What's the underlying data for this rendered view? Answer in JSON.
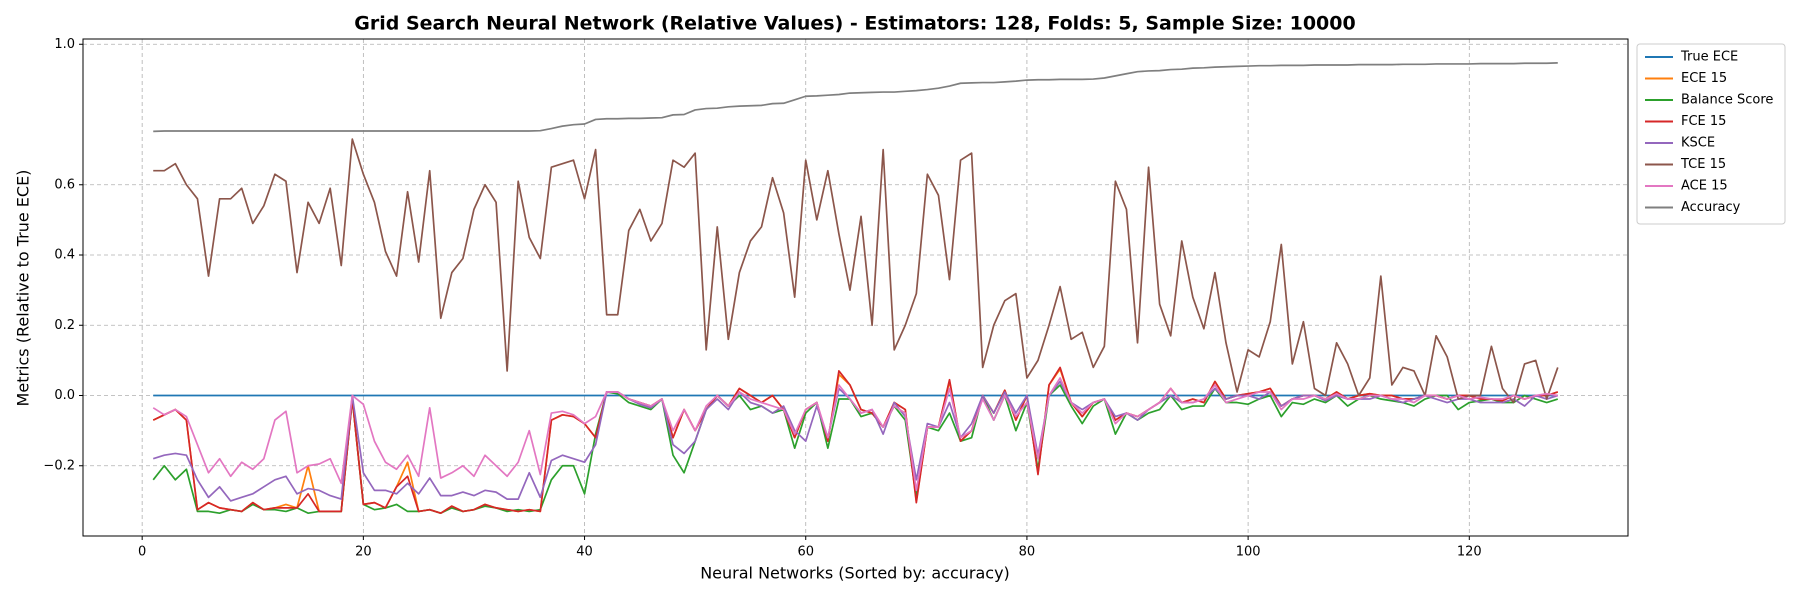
{
  "chart_data": {
    "type": "line",
    "title": "Grid Search Neural Network (Relative Values) - Estimators: 128, Folds: 5, Sample Size: 10000",
    "x_label": "Neural Networks (Sorted by: accuracy)",
    "y_label": "Metrics (Relative to True ECE)",
    "xlim": [
      -5.35,
      134.35
    ],
    "ylim": [
      -0.4,
      1.015
    ],
    "xticks": [
      0,
      20,
      40,
      60,
      80,
      100,
      120
    ],
    "yticks": [
      {
        "value": -0.2,
        "label": "−0.2"
      },
      {
        "value": 0,
        "label": "0.0"
      },
      0.2,
      0.4,
      0.6,
      {
        "value": 1,
        "label": "1.0"
      }
    ],
    "grid": true,
    "legend": "outside-upper-right",
    "x": [
      1,
      2,
      3,
      4,
      5,
      6,
      7,
      8,
      9,
      10,
      11,
      12,
      13,
      14,
      15,
      16,
      17,
      18,
      19,
      20,
      21,
      22,
      23,
      24,
      25,
      26,
      27,
      28,
      29,
      30,
      31,
      32,
      33,
      34,
      35,
      36,
      37,
      38,
      39,
      40,
      41,
      42,
      43,
      44,
      45,
      46,
      47,
      48,
      49,
      50,
      51,
      52,
      53,
      54,
      55,
      56,
      57,
      58,
      59,
      60,
      61,
      62,
      63,
      64,
      65,
      66,
      67,
      68,
      69,
      70,
      71,
      72,
      73,
      74,
      75,
      76,
      77,
      78,
      79,
      80,
      81,
      82,
      83,
      84,
      85,
      86,
      87,
      88,
      89,
      90,
      91,
      92,
      93,
      94,
      95,
      96,
      97,
      98,
      99,
      100,
      101,
      102,
      103,
      104,
      105,
      106,
      107,
      108,
      109,
      110,
      111,
      112,
      113,
      114,
      115,
      116,
      117,
      118,
      119,
      120,
      121,
      122,
      123,
      124,
      125,
      126,
      127,
      128
    ],
    "series": [
      {
        "name": "True ECE",
        "color": "#1f77b4",
        "values": [
          0,
          0,
          0,
          0,
          0,
          0,
          0,
          0,
          0,
          0,
          0,
          0,
          0,
          0,
          0,
          0,
          0,
          0,
          0,
          0,
          0,
          0,
          0,
          0,
          0,
          0,
          0,
          0,
          0,
          0,
          0,
          0,
          0,
          0,
          0,
          0,
          0,
          0,
          0,
          0,
          0,
          0,
          0,
          0,
          0,
          0,
          0,
          0,
          0,
          0,
          0,
          0,
          0,
          0,
          0,
          0,
          0,
          0,
          0,
          0,
          0,
          0,
          0,
          0,
          0,
          0,
          0,
          0,
          0,
          0,
          0,
          0,
          0,
          0,
          0,
          0,
          0,
          0,
          0,
          0,
          0,
          0,
          0,
          0,
          0,
          0,
          0,
          0,
          0,
          0,
          0,
          0,
          0,
          0,
          0,
          0,
          0,
          0,
          0,
          0,
          0,
          0,
          0,
          0,
          0,
          0,
          0,
          0,
          0,
          0,
          0,
          0,
          0,
          0,
          0,
          0,
          0,
          0,
          0,
          0,
          0,
          0,
          0,
          0,
          0,
          0,
          0,
          0
        ]
      },
      {
        "name": "ECE 15",
        "color": "#ff7f0e",
        "values": [
          -0.07,
          -0.055,
          -0.04,
          -0.07,
          -0.325,
          -0.305,
          -0.32,
          -0.325,
          -0.33,
          -0.305,
          -0.325,
          -0.32,
          -0.31,
          -0.32,
          -0.2,
          -0.33,
          -0.33,
          -0.33,
          -0.01,
          -0.31,
          -0.305,
          -0.32,
          -0.26,
          -0.19,
          -0.33,
          -0.325,
          -0.335,
          -0.315,
          -0.33,
          -0.325,
          -0.31,
          -0.32,
          -0.325,
          -0.33,
          -0.325,
          -0.33,
          -0.07,
          -0.055,
          -0.06,
          -0.08,
          -0.12,
          0.01,
          0.01,
          -0.01,
          -0.02,
          -0.03,
          -0.01,
          -0.12,
          -0.04,
          -0.1,
          -0.04,
          0,
          -0.03,
          0.02,
          0,
          -0.02,
          0,
          -0.04,
          -0.12,
          -0.04,
          -0.02,
          -0.13,
          0.06,
          0.03,
          -0.04,
          -0.05,
          -0.09,
          -0.02,
          -0.04,
          -0.3,
          -0.09,
          -0.09,
          0.04,
          -0.13,
          -0.1,
          0,
          -0.05,
          0.015,
          -0.07,
          0,
          -0.22,
          0.03,
          0.075,
          -0.02,
          -0.06,
          -0.02,
          -0.01,
          -0.07,
          -0.05,
          -0.06,
          -0.04,
          -0.02,
          0.02,
          -0.02,
          -0.01,
          -0.02,
          0.04,
          -0.01,
          0,
          0.005,
          0.01,
          0.02,
          -0.03,
          -0.01,
          0,
          0,
          -0.01,
          0.01,
          -0.01,
          0,
          0.005,
          0,
          0,
          -0.01,
          -0.01,
          0,
          0,
          -0.01,
          0,
          0,
          -0.01,
          -0.01,
          -0.015,
          0,
          -0.01,
          0,
          0,
          0.01
        ]
      },
      {
        "name": "Balance Score",
        "color": "#2ca02c",
        "values": [
          -0.24,
          -0.2,
          -0.24,
          -0.21,
          -0.33,
          -0.33,
          -0.335,
          -0.325,
          -0.33,
          -0.31,
          -0.325,
          -0.325,
          -0.33,
          -0.32,
          -0.335,
          -0.33,
          -0.33,
          -0.33,
          -0.01,
          -0.31,
          -0.325,
          -0.32,
          -0.31,
          -0.33,
          -0.33,
          -0.325,
          -0.335,
          -0.32,
          -0.33,
          -0.325,
          -0.315,
          -0.32,
          -0.33,
          -0.325,
          -0.33,
          -0.325,
          -0.24,
          -0.2,
          -0.2,
          -0.28,
          -0.11,
          0.01,
          0.005,
          -0.02,
          -0.03,
          -0.04,
          -0.01,
          -0.17,
          -0.22,
          -0.13,
          -0.04,
          0,
          -0.03,
          0,
          -0.04,
          -0.03,
          -0.05,
          -0.04,
          -0.15,
          -0.05,
          -0.02,
          -0.15,
          -0.01,
          -0.01,
          -0.06,
          -0.05,
          -0.09,
          -0.03,
          -0.07,
          -0.29,
          -0.09,
          -0.1,
          -0.05,
          -0.13,
          -0.12,
          0,
          -0.07,
          0,
          -0.1,
          -0.02,
          -0.21,
          0,
          0.03,
          -0.03,
          -0.08,
          -0.03,
          -0.01,
          -0.11,
          -0.05,
          -0.07,
          -0.05,
          -0.04,
          0,
          -0.04,
          -0.03,
          -0.03,
          0.02,
          -0.02,
          -0.02,
          -0.025,
          -0.01,
          0,
          -0.06,
          -0.02,
          -0.025,
          -0.01,
          -0.02,
          0,
          -0.03,
          -0.01,
          0,
          -0.01,
          -0.015,
          -0.02,
          -0.03,
          -0.01,
          0,
          0,
          -0.04,
          -0.02,
          -0.015,
          -0.01,
          -0.02,
          -0.02,
          0,
          -0.01,
          -0.02,
          -0.01
        ]
      },
      {
        "name": "FCE 15",
        "color": "#d62728",
        "values": [
          -0.07,
          -0.055,
          -0.04,
          -0.07,
          -0.325,
          -0.305,
          -0.32,
          -0.325,
          -0.33,
          -0.305,
          -0.325,
          -0.32,
          -0.32,
          -0.32,
          -0.28,
          -0.33,
          -0.33,
          -0.33,
          -0.01,
          -0.31,
          -0.305,
          -0.32,
          -0.26,
          -0.23,
          -0.33,
          -0.325,
          -0.335,
          -0.315,
          -0.33,
          -0.325,
          -0.31,
          -0.32,
          -0.325,
          -0.33,
          -0.325,
          -0.33,
          -0.07,
          -0.055,
          -0.06,
          -0.08,
          -0.12,
          0.01,
          0.01,
          -0.01,
          -0.02,
          -0.03,
          -0.01,
          -0.12,
          -0.04,
          -0.1,
          -0.04,
          0,
          -0.03,
          0.02,
          0,
          -0.02,
          0,
          -0.04,
          -0.12,
          -0.04,
          -0.02,
          -0.13,
          0.07,
          0.03,
          -0.04,
          -0.05,
          -0.09,
          -0.02,
          -0.04,
          -0.305,
          -0.09,
          -0.09,
          0.045,
          -0.13,
          -0.1,
          0,
          -0.05,
          0.015,
          -0.07,
          0,
          -0.225,
          0.03,
          0.08,
          -0.02,
          -0.06,
          -0.02,
          -0.01,
          -0.07,
          -0.05,
          -0.06,
          -0.04,
          -0.02,
          0.02,
          -0.02,
          -0.01,
          -0.02,
          0.04,
          -0.01,
          0,
          0.005,
          0.01,
          0.02,
          -0.03,
          -0.01,
          0,
          0,
          -0.01,
          0.01,
          -0.01,
          0,
          0.005,
          0,
          0,
          -0.01,
          -0.01,
          0,
          0,
          -0.01,
          0,
          0,
          -0.01,
          -0.01,
          -0.015,
          0,
          -0.01,
          0,
          0,
          0.01
        ]
      },
      {
        "name": "KSCE",
        "color": "#9467bd",
        "values": [
          -0.18,
          -0.17,
          -0.165,
          -0.17,
          -0.24,
          -0.29,
          -0.26,
          -0.3,
          -0.29,
          -0.28,
          -0.26,
          -0.24,
          -0.23,
          -0.28,
          -0.265,
          -0.27,
          -0.285,
          -0.295,
          0,
          -0.22,
          -0.27,
          -0.27,
          -0.28,
          -0.25,
          -0.28,
          -0.235,
          -0.285,
          -0.285,
          -0.275,
          -0.285,
          -0.27,
          -0.275,
          -0.295,
          -0.295,
          -0.22,
          -0.29,
          -0.185,
          -0.17,
          -0.18,
          -0.19,
          -0.14,
          0.01,
          0.01,
          -0.01,
          -0.025,
          -0.035,
          -0.01,
          -0.14,
          -0.165,
          -0.13,
          -0.04,
          -0.01,
          -0.04,
          0.01,
          -0.02,
          -0.03,
          -0.05,
          -0.03,
          -0.1,
          -0.13,
          -0.03,
          -0.12,
          0.02,
          -0.01,
          -0.05,
          -0.04,
          -0.11,
          -0.02,
          -0.06,
          -0.24,
          -0.08,
          -0.09,
          -0.02,
          -0.12,
          -0.08,
          0,
          -0.05,
          0.01,
          -0.05,
          0,
          -0.17,
          0,
          0.04,
          -0.02,
          -0.04,
          -0.02,
          -0.01,
          -0.06,
          -0.05,
          -0.07,
          -0.04,
          -0.02,
          0,
          -0.02,
          -0.02,
          -0.01,
          0.02,
          -0.01,
          0,
          0,
          -0.01,
          0.01,
          -0.03,
          -0.01,
          0,
          0,
          -0.015,
          0,
          -0.01,
          -0.01,
          -0.01,
          0,
          -0.01,
          -0.02,
          -0.01,
          0,
          -0.01,
          -0.02,
          -0.01,
          -0.01,
          -0.02,
          -0.02,
          -0.02,
          -0.01,
          -0.03,
          0,
          -0.01,
          0
        ]
      },
      {
        "name": "TCE 15",
        "color": "#8c564b",
        "values": [
          0.64,
          0.64,
          0.66,
          0.6,
          0.56,
          0.34,
          0.56,
          0.56,
          0.59,
          0.49,
          0.54,
          0.63,
          0.61,
          0.35,
          0.55,
          0.49,
          0.59,
          0.37,
          0.73,
          0.63,
          0.55,
          0.41,
          0.34,
          0.58,
          0.38,
          0.64,
          0.22,
          0.35,
          0.39,
          0.53,
          0.6,
          0.55,
          0.07,
          0.61,
          0.45,
          0.39,
          0.65,
          0.66,
          0.67,
          0.56,
          0.7,
          0.23,
          0.23,
          0.47,
          0.53,
          0.44,
          0.49,
          0.67,
          0.65,
          0.69,
          0.13,
          0.48,
          0.16,
          0.35,
          0.44,
          0.48,
          0.62,
          0.52,
          0.28,
          0.67,
          0.5,
          0.64,
          0.46,
          0.3,
          0.51,
          0.2,
          0.7,
          0.13,
          0.2,
          0.29,
          0.63,
          0.57,
          0.33,
          0.67,
          0.69,
          0.08,
          0.2,
          0.27,
          0.29,
          0.05,
          0.1,
          0.2,
          0.31,
          0.16,
          0.18,
          0.08,
          0.14,
          0.61,
          0.53,
          0.15,
          0.65,
          0.26,
          0.17,
          0.44,
          0.28,
          0.19,
          0.35,
          0.15,
          0.01,
          0.13,
          0.11,
          0.21,
          0.43,
          0.09,
          0.21,
          0.02,
          0,
          0.15,
          0.09,
          0,
          0.05,
          0.34,
          0.03,
          0.08,
          0.07,
          0,
          0.17,
          0.11,
          -0.01,
          0,
          0,
          0.14,
          0.02,
          -0.02,
          0.09,
          0.1,
          -0.01,
          0.08
        ]
      },
      {
        "name": "ACE 15",
        "color": "#e377c2",
        "values": [
          -0.035,
          -0.055,
          -0.04,
          -0.06,
          -0.14,
          -0.22,
          -0.18,
          -0.23,
          -0.19,
          -0.21,
          -0.18,
          -0.07,
          -0.045,
          -0.22,
          -0.2,
          -0.195,
          -0.18,
          -0.25,
          0,
          -0.025,
          -0.13,
          -0.19,
          -0.21,
          -0.17,
          -0.23,
          -0.035,
          -0.235,
          -0.22,
          -0.2,
          -0.23,
          -0.17,
          -0.2,
          -0.23,
          -0.19,
          -0.1,
          -0.225,
          -0.05,
          -0.045,
          -0.055,
          -0.08,
          -0.06,
          0.01,
          0.01,
          -0.01,
          -0.02,
          -0.03,
          -0.01,
          -0.1,
          -0.04,
          -0.1,
          -0.03,
          0,
          -0.03,
          0.01,
          -0.01,
          -0.02,
          -0.03,
          -0.04,
          -0.11,
          -0.04,
          -0.02,
          -0.12,
          0.03,
          -0.01,
          -0.05,
          -0.04,
          -0.09,
          -0.03,
          -0.05,
          -0.27,
          -0.09,
          -0.09,
          0.02,
          -0.12,
          -0.1,
          -0.01,
          -0.07,
          0,
          -0.06,
          -0.02,
          -0.18,
          0,
          0.05,
          -0.02,
          -0.05,
          -0.02,
          -0.01,
          -0.08,
          -0.05,
          -0.06,
          -0.04,
          -0.02,
          0.02,
          -0.02,
          -0.02,
          -0.01,
          0.03,
          -0.02,
          -0.01,
          0,
          0.01,
          0.01,
          -0.04,
          -0.01,
          -0.01,
          0,
          -0.01,
          0.005,
          -0.01,
          -0.01,
          0,
          0,
          -0.01,
          -0.01,
          -0.02,
          0,
          0,
          -0.01,
          0,
          -0.01,
          -0.005,
          -0.01,
          -0.01,
          0,
          -0.01,
          0,
          0.005,
          0
        ]
      },
      {
        "name": "Accuracy",
        "color": "#7f7f7f",
        "values": [
          0.752,
          0.753,
          0.753,
          0.753,
          0.753,
          0.753,
          0.753,
          0.753,
          0.753,
          0.753,
          0.753,
          0.753,
          0.753,
          0.753,
          0.753,
          0.753,
          0.753,
          0.753,
          0.753,
          0.753,
          0.753,
          0.753,
          0.753,
          0.753,
          0.753,
          0.753,
          0.753,
          0.753,
          0.753,
          0.753,
          0.753,
          0.753,
          0.753,
          0.753,
          0.753,
          0.754,
          0.76,
          0.767,
          0.771,
          0.773,
          0.786,
          0.788,
          0.788,
          0.789,
          0.789,
          0.79,
          0.791,
          0.799,
          0.8,
          0.813,
          0.817,
          0.818,
          0.822,
          0.824,
          0.825,
          0.826,
          0.831,
          0.832,
          0.842,
          0.852,
          0.853,
          0.855,
          0.857,
          0.861,
          0.862,
          0.863,
          0.864,
          0.864,
          0.866,
          0.868,
          0.871,
          0.875,
          0.881,
          0.889,
          0.89,
          0.891,
          0.891,
          0.893,
          0.895,
          0.898,
          0.899,
          0.899,
          0.9,
          0.9,
          0.9,
          0.901,
          0.904,
          0.91,
          0.916,
          0.922,
          0.924,
          0.925,
          0.928,
          0.929,
          0.932,
          0.933,
          0.935,
          0.936,
          0.937,
          0.938,
          0.939,
          0.939,
          0.94,
          0.94,
          0.94,
          0.941,
          0.941,
          0.941,
          0.941,
          0.942,
          0.942,
          0.942,
          0.942,
          0.943,
          0.943,
          0.943,
          0.944,
          0.944,
          0.944,
          0.944,
          0.945,
          0.945,
          0.945,
          0.945,
          0.946,
          0.946,
          0.946,
          0.947
        ]
      }
    ]
  }
}
